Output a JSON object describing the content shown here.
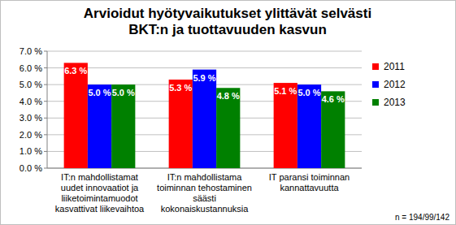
{
  "chart_data": {
    "type": "bar",
    "title": "Arvioidut hyötyvaikutukset ylittävät selvästi BKT:n ja tuottavuuden kasvun",
    "categories": [
      "IT:n mahdollistamat uudet innovaatiot ja liiketoimintamuodot kasvattivat liikevaihtoa",
      "IT:n mahdollistama toiminnan tehostaminen säästi kokonaiskustannuksia",
      "IT paransi toiminnan kannattavuutta"
    ],
    "series": [
      {
        "name": "2011",
        "color": "#ff0000",
        "values": [
          6.3,
          5.3,
          5.1
        ],
        "value_labels": [
          "6.3 %",
          "5.3 %",
          "5.1 %"
        ]
      },
      {
        "name": "2012",
        "color": "#0000ff",
        "values": [
          5.0,
          5.9,
          5.0
        ],
        "value_labels": [
          "5.0 %",
          "5.9 %",
          "5.0 %"
        ]
      },
      {
        "name": "2013",
        "color": "#008000",
        "values": [
          5.0,
          4.8,
          4.6
        ],
        "value_labels": [
          "5.0 %",
          "4.8 %",
          "4.6 %"
        ]
      }
    ],
    "ylim": [
      0,
      7
    ],
    "yticks": [
      {
        "value": 0,
        "label": "0.0 %"
      },
      {
        "value": 1,
        "label": "1.0 %"
      },
      {
        "value": 2,
        "label": "2.0 %"
      },
      {
        "value": 3,
        "label": "3.0 %"
      },
      {
        "value": 4,
        "label": "4.0 %"
      },
      {
        "value": 5,
        "label": "5.0 %"
      },
      {
        "value": 6,
        "label": "6.0 %"
      },
      {
        "value": 7,
        "label": "7.0 %"
      }
    ],
    "grid": true,
    "legend": "right",
    "data_labels": true,
    "annotations": [
      "n = 194/99/142"
    ]
  }
}
